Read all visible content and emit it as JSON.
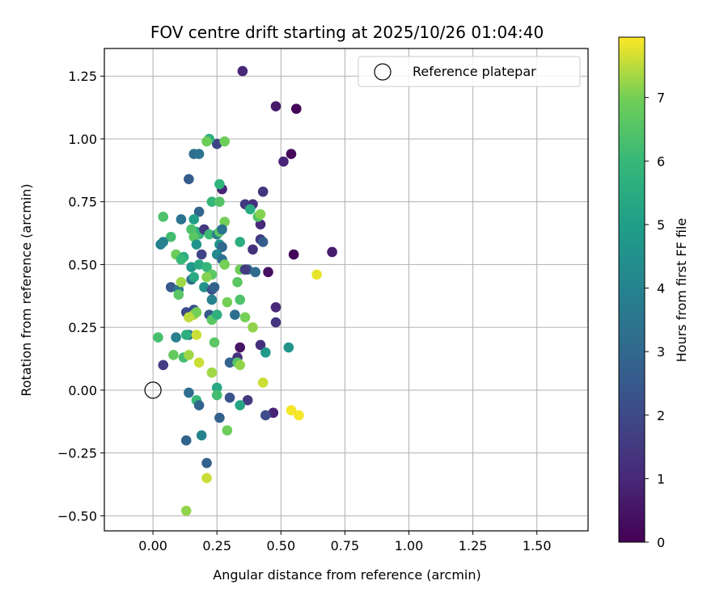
{
  "chart_data": {
    "type": "scatter",
    "title": "FOV centre drift starting at 2025/10/26 01:04:40",
    "xlabel": "Angular distance from reference (arcmin)",
    "ylabel": "Rotation from reference (arcmin)",
    "xlim": [
      -0.19,
      1.7
    ],
    "ylim": [
      -0.56,
      1.36
    ],
    "xticks": [
      0.0,
      0.25,
      0.5,
      0.75,
      1.0,
      1.25,
      1.5
    ],
    "xtick_labels": [
      "0.00",
      "0.25",
      "0.50",
      "0.75",
      "1.00",
      "1.25",
      "1.50"
    ],
    "yticks": [
      -0.5,
      -0.25,
      0.0,
      0.25,
      0.5,
      0.75,
      1.0,
      1.25
    ],
    "ytick_labels": [
      "−0.50",
      "−0.25",
      "0.00",
      "0.25",
      "0.50",
      "0.75",
      "1.00",
      "1.25"
    ],
    "grid": true,
    "legend": {
      "location": "top-right",
      "entries": [
        "Reference platepar"
      ]
    },
    "reference_point": {
      "x": 0.0,
      "y": 0.0,
      "label": "Reference platepar"
    },
    "colorbar": {
      "label": "Hours from first FF file",
      "colormap": "viridis",
      "range": [
        0,
        7.95
      ],
      "ticks": [
        0,
        1,
        2,
        3,
        4,
        5,
        6,
        7
      ],
      "tick_labels": [
        "0",
        "1",
        "2",
        "3",
        "4",
        "5",
        "6",
        "7"
      ]
    },
    "points": [
      {
        "x": 0.56,
        "y": 1.12,
        "c": 0.1
      },
      {
        "x": 0.48,
        "y": 1.13,
        "c": 0.6
      },
      {
        "x": 0.35,
        "y": 1.27,
        "c": 1.0
      },
      {
        "x": 0.54,
        "y": 0.94,
        "c": 0.2
      },
      {
        "x": 0.51,
        "y": 0.91,
        "c": 0.9
      },
      {
        "x": 0.25,
        "y": 0.98,
        "c": 1.8
      },
      {
        "x": 0.7,
        "y": 0.55,
        "c": 0.7
      },
      {
        "x": 0.55,
        "y": 0.54,
        "c": 0.1
      },
      {
        "x": 0.45,
        "y": 0.47,
        "c": 0.4
      },
      {
        "x": 0.48,
        "y": 0.33,
        "c": 1.0
      },
      {
        "x": 0.48,
        "y": 0.27,
        "c": 1.4
      },
      {
        "x": 0.47,
        "y": -0.09,
        "c": 0.9
      },
      {
        "x": 0.43,
        "y": 0.79,
        "c": 1.4
      },
      {
        "x": 0.39,
        "y": 0.74,
        "c": 1.2
      },
      {
        "x": 0.36,
        "y": 0.74,
        "c": 1.5
      },
      {
        "x": 0.42,
        "y": 0.66,
        "c": 1.0
      },
      {
        "x": 0.42,
        "y": 0.6,
        "c": 1.5
      },
      {
        "x": 0.43,
        "y": 0.59,
        "c": 2.6
      },
      {
        "x": 0.39,
        "y": 0.56,
        "c": 1.3
      },
      {
        "x": 0.27,
        "y": 0.8,
        "c": 0.9
      },
      {
        "x": 0.16,
        "y": 0.94,
        "c": 3.2
      },
      {
        "x": 0.18,
        "y": 0.94,
        "c": 3.5
      },
      {
        "x": 0.14,
        "y": 0.84,
        "c": 2.6
      },
      {
        "x": 0.22,
        "y": 1.0,
        "c": 5.6
      },
      {
        "x": 0.21,
        "y": 0.99,
        "c": 6.9
      },
      {
        "x": 0.28,
        "y": 0.99,
        "c": 6.9
      },
      {
        "x": 0.26,
        "y": 0.82,
        "c": 5.8
      },
      {
        "x": 0.23,
        "y": 0.75,
        "c": 5.9
      },
      {
        "x": 0.26,
        "y": 0.75,
        "c": 6.5
      },
      {
        "x": 0.18,
        "y": 0.71,
        "c": 2.9
      },
      {
        "x": 0.11,
        "y": 0.68,
        "c": 3.4
      },
      {
        "x": 0.04,
        "y": 0.69,
        "c": 6.4
      },
      {
        "x": 0.07,
        "y": 0.61,
        "c": 6.2
      },
      {
        "x": 0.03,
        "y": 0.58,
        "c": 3.9
      },
      {
        "x": 0.04,
        "y": 0.59,
        "c": 4.0
      },
      {
        "x": 0.09,
        "y": 0.54,
        "c": 6.9
      },
      {
        "x": 0.12,
        "y": 0.53,
        "c": 5.6
      },
      {
        "x": 0.11,
        "y": 0.52,
        "c": 6.0
      },
      {
        "x": 0.15,
        "y": 0.49,
        "c": 4.8
      },
      {
        "x": 0.16,
        "y": 0.68,
        "c": 5.0
      },
      {
        "x": 0.17,
        "y": 0.63,
        "c": 5.3
      },
      {
        "x": 0.18,
        "y": 0.62,
        "c": 5.8
      },
      {
        "x": 0.15,
        "y": 0.64,
        "c": 6.4
      },
      {
        "x": 0.16,
        "y": 0.61,
        "c": 6.6
      },
      {
        "x": 0.17,
        "y": 0.58,
        "c": 4.6
      },
      {
        "x": 0.19,
        "y": 0.54,
        "c": 1.8
      },
      {
        "x": 0.18,
        "y": 0.5,
        "c": 5.4
      },
      {
        "x": 0.21,
        "y": 0.49,
        "c": 5.9
      },
      {
        "x": 0.2,
        "y": 0.64,
        "c": 1.5
      },
      {
        "x": 0.22,
        "y": 0.62,
        "c": 6.1
      },
      {
        "x": 0.25,
        "y": 0.62,
        "c": 3.8
      },
      {
        "x": 0.26,
        "y": 0.63,
        "c": 6.6
      },
      {
        "x": 0.26,
        "y": 0.58,
        "c": 4.6
      },
      {
        "x": 0.27,
        "y": 0.57,
        "c": 3.0
      },
      {
        "x": 0.25,
        "y": 0.54,
        "c": 4.2
      },
      {
        "x": 0.27,
        "y": 0.52,
        "c": 3.3
      },
      {
        "x": 0.28,
        "y": 0.5,
        "c": 7.0
      },
      {
        "x": 0.28,
        "y": 0.67,
        "c": 7.0
      },
      {
        "x": 0.27,
        "y": 0.64,
        "c": 3.4
      },
      {
        "x": 0.38,
        "y": 0.72,
        "c": 5.5
      },
      {
        "x": 0.41,
        "y": 0.69,
        "c": 6.5
      },
      {
        "x": 0.42,
        "y": 0.7,
        "c": 7.1
      },
      {
        "x": 0.34,
        "y": 0.59,
        "c": 5.6
      },
      {
        "x": 0.37,
        "y": 0.48,
        "c": 2.8
      },
      {
        "x": 0.4,
        "y": 0.47,
        "c": 3.1
      },
      {
        "x": 0.34,
        "y": 0.48,
        "c": 6.9
      },
      {
        "x": 0.36,
        "y": 0.48,
        "c": 1.6
      },
      {
        "x": 0.64,
        "y": 0.46,
        "c": 7.8
      },
      {
        "x": 0.33,
        "y": 0.43,
        "c": 6.6
      },
      {
        "x": 0.07,
        "y": 0.41,
        "c": 2.5
      },
      {
        "x": 0.1,
        "y": 0.4,
        "c": 3.5
      },
      {
        "x": 0.1,
        "y": 0.38,
        "c": 6.6
      },
      {
        "x": 0.11,
        "y": 0.43,
        "c": 7.3
      },
      {
        "x": 0.15,
        "y": 0.44,
        "c": 3.2
      },
      {
        "x": 0.16,
        "y": 0.45,
        "c": 5.4
      },
      {
        "x": 0.2,
        "y": 0.41,
        "c": 4.5
      },
      {
        "x": 0.23,
        "y": 0.4,
        "c": 2.3
      },
      {
        "x": 0.24,
        "y": 0.41,
        "c": 2.8
      },
      {
        "x": 0.23,
        "y": 0.46,
        "c": 6.6
      },
      {
        "x": 0.21,
        "y": 0.45,
        "c": 7.1
      },
      {
        "x": 0.23,
        "y": 0.36,
        "c": 4.0
      },
      {
        "x": 0.29,
        "y": 0.35,
        "c": 7.0
      },
      {
        "x": 0.34,
        "y": 0.36,
        "c": 6.4
      },
      {
        "x": 0.13,
        "y": 0.31,
        "c": 2.0
      },
      {
        "x": 0.16,
        "y": 0.32,
        "c": 2.2
      },
      {
        "x": 0.16,
        "y": 0.3,
        "c": 7.4
      },
      {
        "x": 0.17,
        "y": 0.31,
        "c": 7.0
      },
      {
        "x": 0.14,
        "y": 0.29,
        "c": 7.5
      },
      {
        "x": 0.22,
        "y": 0.3,
        "c": 2.5
      },
      {
        "x": 0.23,
        "y": 0.28,
        "c": 6.6
      },
      {
        "x": 0.25,
        "y": 0.3,
        "c": 5.7
      },
      {
        "x": 0.32,
        "y": 0.3,
        "c": 3.3
      },
      {
        "x": 0.36,
        "y": 0.29,
        "c": 7.0
      },
      {
        "x": 0.39,
        "y": 0.25,
        "c": 7.2
      },
      {
        "x": 0.02,
        "y": 0.21,
        "c": 6.3
      },
      {
        "x": 0.09,
        "y": 0.21,
        "c": 3.9
      },
      {
        "x": 0.14,
        "y": 0.22,
        "c": 3.2
      },
      {
        "x": 0.13,
        "y": 0.22,
        "c": 5.6
      },
      {
        "x": 0.17,
        "y": 0.22,
        "c": 7.6
      },
      {
        "x": 0.24,
        "y": 0.19,
        "c": 6.6
      },
      {
        "x": 0.42,
        "y": 0.18,
        "c": 1.2
      },
      {
        "x": 0.53,
        "y": 0.17,
        "c": 4.6
      },
      {
        "x": 0.34,
        "y": 0.17,
        "c": 0.5
      },
      {
        "x": 0.33,
        "y": 0.13,
        "c": 1.3
      },
      {
        "x": 0.44,
        "y": 0.15,
        "c": 4.8
      },
      {
        "x": 0.04,
        "y": 0.1,
        "c": 1.6
      },
      {
        "x": 0.08,
        "y": 0.14,
        "c": 6.8
      },
      {
        "x": 0.12,
        "y": 0.13,
        "c": 6.2
      },
      {
        "x": 0.14,
        "y": 0.14,
        "c": 7.3
      },
      {
        "x": 0.18,
        "y": 0.11,
        "c": 7.6
      },
      {
        "x": 0.3,
        "y": 0.11,
        "c": 2.8
      },
      {
        "x": 0.33,
        "y": 0.11,
        "c": 6.5
      },
      {
        "x": 0.34,
        "y": 0.1,
        "c": 7.2
      },
      {
        "x": 0.23,
        "y": 0.07,
        "c": 7.3
      },
      {
        "x": 0.43,
        "y": 0.03,
        "c": 7.6
      },
      {
        "x": 0.14,
        "y": -0.01,
        "c": 3.2
      },
      {
        "x": 0.25,
        "y": 0.01,
        "c": 5.4
      },
      {
        "x": 0.25,
        "y": -0.02,
        "c": 6.2
      },
      {
        "x": 0.17,
        "y": -0.04,
        "c": 6.0
      },
      {
        "x": 0.18,
        "y": -0.06,
        "c": 2.9
      },
      {
        "x": 0.3,
        "y": -0.03,
        "c": 2.3
      },
      {
        "x": 0.37,
        "y": -0.04,
        "c": 1.5
      },
      {
        "x": 0.34,
        "y": -0.06,
        "c": 5.2
      },
      {
        "x": 0.44,
        "y": -0.1,
        "c": 2.1
      },
      {
        "x": 0.54,
        "y": -0.08,
        "c": 7.9
      },
      {
        "x": 0.57,
        "y": -0.1,
        "c": 7.9
      },
      {
        "x": 0.26,
        "y": -0.11,
        "c": 2.8
      },
      {
        "x": 0.13,
        "y": -0.2,
        "c": 2.9
      },
      {
        "x": 0.19,
        "y": -0.18,
        "c": 4.0
      },
      {
        "x": 0.29,
        "y": -0.16,
        "c": 6.9
      },
      {
        "x": 0.21,
        "y": -0.29,
        "c": 2.8
      },
      {
        "x": 0.21,
        "y": -0.35,
        "c": 7.6
      },
      {
        "x": 0.13,
        "y": -0.48,
        "c": 7.2
      }
    ]
  }
}
